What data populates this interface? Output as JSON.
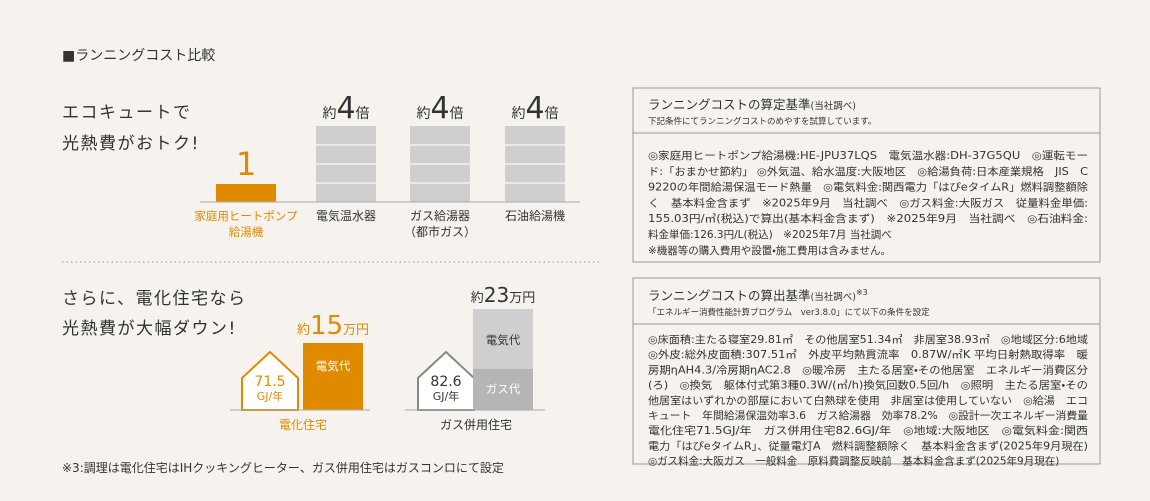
{
  "heading": "■ランニングコスト比較",
  "comparison1": {
    "lead": [
      "エコキュートで",
      "光熱費がおトク!"
    ],
    "items": [
      {
        "value": "1",
        "label": [
          "家庭用ヒートポンプ",
          "給湯機"
        ]
      },
      {
        "prefix": "約",
        "value": "4",
        "suffix": "倍",
        "label": [
          "電気温水器"
        ]
      },
      {
        "prefix": "約",
        "value": "4",
        "suffix": "倍",
        "label": [
          "ガス給湯器",
          "（都市ガス）"
        ]
      },
      {
        "prefix": "約",
        "value": "4",
        "suffix": "倍",
        "label": [
          "石油給湯機"
        ]
      }
    ]
  },
  "comparison2": {
    "lead": [
      "さらに、電化住宅なら",
      "光熱費が大幅ダウン!"
    ],
    "homes": [
      {
        "energy": "71.5",
        "energy_unit": "GJ/年",
        "cost_prefix": "約",
        "cost": "15",
        "cost_unit": "万円",
        "segments": [
          "電気代"
        ],
        "label": "電化住宅"
      },
      {
        "energy": "82.6",
        "energy_unit": "GJ/年",
        "cost_prefix": "約",
        "cost": "23",
        "cost_unit": "万円",
        "segments": [
          "電気代",
          "ガス代"
        ],
        "label": "ガス併用住宅"
      }
    ]
  },
  "footnote": "※3:調理は電化住宅はIHクッキングヒーター、ガス併用住宅はガスコンロにて設定",
  "boxes": [
    {
      "title": "ランニングコストの算定基準",
      "title_note": "(当社調べ)",
      "subtitle": "下記条件にてランニングコストのめやすを試算しています。",
      "lines": [
        "◎家庭用ヒートポンプ給湯機:HE-JPU37LQS　電気温水器:DH-37G5QU　◎運転モー",
        "ド:「おまかせ節約」 ◎外気温、給水温度:大阪地区　◎給湯負荷:日本産業規格　JIS　C",
        "9220の年間給湯保温モード熱量　◎電気料金:関西電力「はぴeタイムR」燃料調整額除",
        "く　基本料金含まず　※2025年9月　当社調べ　◎ガス料金:大阪ガス　従量料金単価:",
        "155.03円/㎥(税込)で算出(基本料金含まず)　※2025年9月　当社調べ　◎石油料金:",
        "料金単価:126.3円/L(税込)　※2025年7月 当社調べ",
        "※機器等の購入費用や設置・施工費用は含みません。"
      ]
    },
    {
      "title": "ランニングコストの算出基準",
      "title_note": "(当社調べ)",
      "title_mark": "※3",
      "subtitle": "「エネルギー消費性能計算プログラム　ver3.8.0」にて以下の条件を設定",
      "lines": [
        "◎床面積:主たる寝室29.81㎡　その他居室51.34㎡　非居室38.93㎡　◎地域区分:6地域",
        "◎外皮:総外皮面積:307.51㎡　外皮平均熱貫流率　0.87W/㎡K 平均日射熱取得率　暖",
        "房期ηAH4.3/冷房期ηAC2.8　◎暖冷房　主たる居室・その他居室　エネルギー消費区分",
        "(ろ)　◎換気　躯体付式第3種0.3W/(㎥/h)換気回数0.5回/h　◎照明　主たる居室・その",
        "他居室はいずれかの部屋において白熱球を使用　非居室は使用していない　◎給湯　エコ",
        "キュート　年間給湯保温効率3.6　ガス給湯器　効率78.2%　◎設計一次エネルギー消費量",
        "電化住宅71.5GJ/年　ガス併用住宅82.6GJ/年　◎地域:大阪地区　◎電気料金:関西",
        "電力「はぴeタイムR」、従量電灯A　燃料調整額除く　基本料金含まず(2025年9月現在)",
        "◎ガス料金:大阪ガス　一般料金　原料費調整反映前　基本料金含まず(2025年9月現在)"
      ]
    }
  ]
}
